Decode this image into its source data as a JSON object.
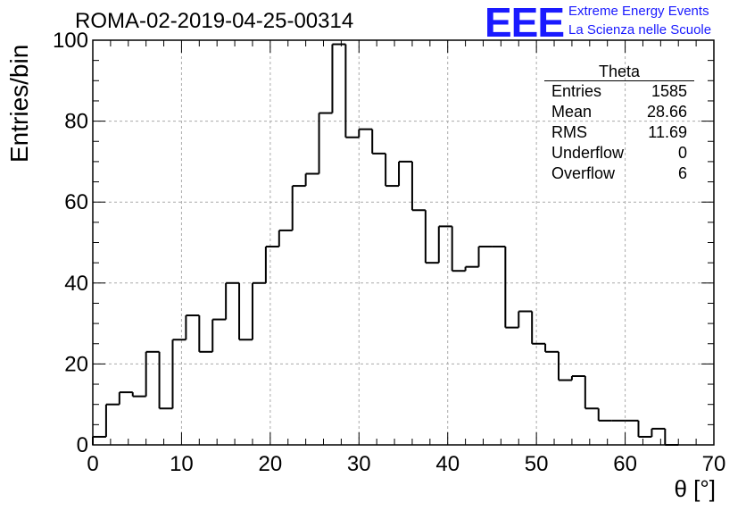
{
  "run_title": "ROMA-02-2019-04-25-00314",
  "logo": {
    "mark": "EEE",
    "line1": "Extreme Energy Events",
    "line2": "La Scienza nelle Scuole",
    "color": "#1a1aff"
  },
  "stats_box": {
    "name": "Theta",
    "rows": [
      {
        "label": "Entries",
        "value": "1585"
      },
      {
        "label": "Mean",
        "value": "28.66"
      },
      {
        "label": "RMS",
        "value": "11.69"
      },
      {
        "label": "Underflow",
        "value": "0"
      },
      {
        "label": "Overflow",
        "value": "6"
      }
    ]
  },
  "chart_data": {
    "type": "bar",
    "style": "step-histogram",
    "xlabel": "θ [°]",
    "ylabel": "Entries/bin",
    "xlim": [
      0,
      70
    ],
    "ylim": [
      0,
      100
    ],
    "x_ticks": [
      0,
      10,
      20,
      30,
      40,
      50,
      60,
      70
    ],
    "y_ticks": [
      0,
      20,
      40,
      60,
      80,
      100
    ],
    "grid": true,
    "bin_width": 1.5,
    "bin_edges_start": 0,
    "values": [
      2,
      10,
      13,
      12,
      23,
      9,
      26,
      32,
      23,
      31,
      40,
      26,
      40,
      49,
      53,
      64,
      67,
      82,
      99,
      76,
      78,
      72,
      64,
      70,
      58,
      45,
      54,
      43,
      44,
      49,
      49,
      29,
      33,
      25,
      23,
      16,
      17,
      9,
      6,
      6,
      6,
      2,
      4,
      0
    ]
  }
}
